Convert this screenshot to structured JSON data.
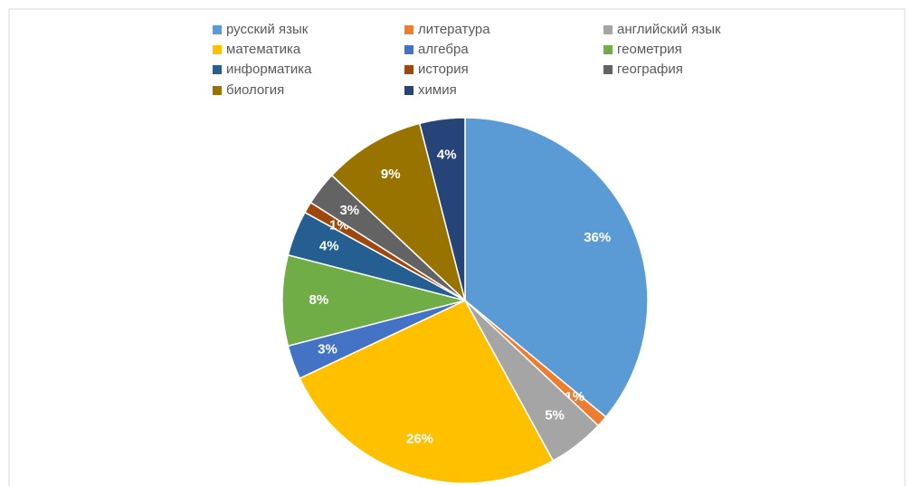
{
  "chart_data": {
    "type": "pie",
    "categories": [
      "русский язык",
      "литература",
      "английский язык",
      "математика",
      "алгебра",
      "геометрия",
      "информатика",
      "история",
      "география",
      "биология",
      "химия"
    ],
    "values": [
      36,
      1,
      5,
      26,
      3,
      8,
      4,
      1,
      3,
      9,
      4
    ],
    "value_labels": [
      "36%",
      "1%",
      "5%",
      "26%",
      "3%",
      "8%",
      "4%",
      "1%",
      "3%",
      "9%",
      "4%"
    ],
    "colors": [
      "#5b9bd5",
      "#ed7d31",
      "#a5a5a5",
      "#ffc000",
      "#4472c4",
      "#70ad47",
      "#255e91",
      "#9e480e",
      "#636363",
      "#997300",
      "#264478"
    ],
    "legend": "top"
  }
}
